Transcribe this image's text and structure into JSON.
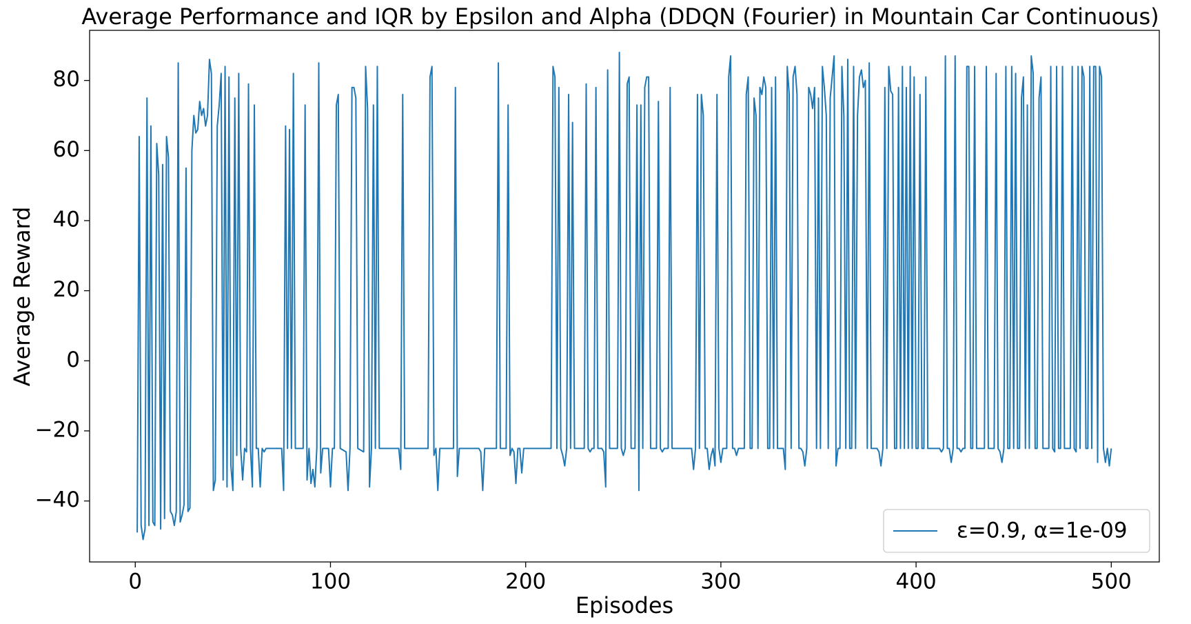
{
  "chart_data": {
    "type": "line",
    "title": "Average Performance and IQR by Epsilon and Alpha (DDQN (Fourier) in Mountain Car Continuous)",
    "x_label": "Episodes",
    "y_label": "Average Reward",
    "xlim": [
      -23.4,
      524.6
    ],
    "ylim": [
      -57.4,
      94.3
    ],
    "xticks": [
      0,
      100,
      200,
      300,
      400,
      500
    ],
    "yticks": [
      {
        "value": -40,
        "label": "−40"
      },
      {
        "value": -20,
        "label": "−20"
      },
      0,
      20,
      40,
      60,
      80
    ],
    "legend": "lower right",
    "grid": false,
    "x": [
      1,
      2,
      3,
      4,
      5,
      6,
      7,
      8,
      9,
      10,
      11,
      12,
      13,
      14,
      15,
      16,
      17,
      18,
      19,
      20,
      21,
      22,
      23,
      24,
      25,
      26,
      27,
      28,
      29,
      30,
      31,
      32,
      33,
      34,
      35,
      36,
      37,
      38,
      39,
      40,
      41,
      42,
      43,
      44,
      45,
      46,
      47,
      48,
      49,
      50,
      51,
      52,
      53,
      54,
      55,
      56,
      57,
      58,
      59,
      60,
      61,
      62,
      63,
      64,
      65,
      66,
      67,
      75,
      76,
      77,
      78,
      79,
      80,
      81,
      82,
      86,
      87,
      88,
      89,
      90,
      91,
      92,
      93,
      94,
      95,
      96,
      99,
      100,
      101,
      102,
      103,
      104,
      105,
      108,
      109,
      110,
      111,
      112,
      113,
      114,
      117,
      118,
      119,
      120,
      121,
      122,
      123,
      124,
      125,
      135,
      136,
      137,
      138,
      150,
      151,
      152,
      153,
      154,
      155,
      156,
      163,
      164,
      165,
      166,
      176,
      177,
      178,
      179,
      185,
      186,
      187,
      190,
      191,
      192,
      193,
      194,
      195,
      196,
      197,
      198,
      199,
      213,
      214,
      215,
      216,
      217,
      218,
      219,
      220,
      221,
      222,
      223,
      224,
      225,
      226,
      227,
      228,
      229,
      230,
      231,
      232,
      233,
      234,
      235,
      236,
      237,
      238,
      239,
      240,
      241,
      242,
      243,
      244,
      245,
      246,
      247,
      248,
      249,
      250,
      251,
      252,
      253,
      254,
      255,
      256,
      257,
      258,
      259,
      260,
      261,
      262,
      263,
      264,
      265,
      266,
      267,
      268,
      269,
      270,
      271,
      272,
      273,
      274,
      275,
      285,
      286,
      287,
      288,
      289,
      290,
      291,
      292,
      293,
      294,
      295,
      296,
      297,
      298,
      299,
      300,
      301,
      302,
      303,
      304,
      305,
      306,
      307,
      308,
      309,
      310,
      311,
      312,
      313,
      314,
      315,
      316,
      317,
      318,
      319,
      320,
      321,
      322,
      323,
      324,
      325,
      326,
      327,
      328,
      329,
      330,
      331,
      332,
      333,
      334,
      335,
      336,
      337,
      338,
      339,
      340,
      341,
      342,
      343,
      344,
      345,
      346,
      347,
      348,
      349,
      350,
      351,
      352,
      353,
      354,
      355,
      356,
      357,
      358,
      359,
      360,
      361,
      362,
      363,
      364,
      365,
      366,
      367,
      368,
      369,
      370,
      371,
      372,
      373,
      374,
      375,
      376,
      377,
      378,
      379,
      380,
      381,
      382,
      383,
      384,
      385,
      386,
      387,
      388,
      389,
      390,
      391,
      392,
      393,
      394,
      395,
      396,
      397,
      398,
      399,
      400,
      401,
      402,
      403,
      404,
      405,
      406,
      407,
      408,
      409,
      410,
      411,
      412,
      413,
      414,
      415,
      416,
      417,
      418,
      419,
      420,
      421,
      422,
      423,
      424,
      425,
      426,
      427,
      428,
      429,
      430,
      431,
      432,
      433,
      434,
      435,
      436,
      437,
      438,
      439,
      440,
      441,
      442,
      443,
      444,
      445,
      446,
      447,
      448,
      449,
      450,
      451,
      452,
      453,
      454,
      455,
      456,
      457,
      458,
      459,
      460,
      461,
      462,
      463,
      464,
      465,
      466,
      467,
      468,
      469,
      470,
      471,
      472,
      473,
      474,
      475,
      476,
      477,
      478,
      479,
      480,
      481,
      482,
      483,
      484,
      485,
      486,
      487,
      488,
      489,
      490,
      491,
      492,
      493,
      494,
      495,
      496,
      497,
      498,
      499,
      500
    ],
    "series": [
      {
        "name": "ε=0.9, α=1e-09",
        "color": "#1f77b4",
        "values": [
          -49,
          64,
          -47,
          -51,
          -48,
          75,
          -47,
          67,
          -46,
          -47,
          62,
          53,
          -48,
          56,
          -45,
          64,
          58,
          -43,
          -44,
          -47,
          -43,
          85,
          -46,
          -44,
          -41,
          55,
          -43,
          -42,
          60,
          70,
          65,
          66,
          74,
          70,
          72,
          67,
          70,
          86,
          82,
          -37,
          -34,
          67,
          73,
          82,
          -34,
          84,
          -36,
          81,
          -30,
          -37,
          75,
          -27,
          82,
          -25,
          -34,
          -25,
          -26,
          79,
          -25,
          -36,
          73,
          -25,
          -25,
          -36,
          -25,
          -26,
          -25,
          -25,
          -37,
          67,
          -25,
          66,
          -25,
          82,
          -25,
          -25,
          73,
          -34,
          -25,
          -35,
          -31,
          -36,
          -25,
          85,
          -32,
          -25,
          -25,
          -36,
          -25,
          -25,
          73,
          76,
          -25,
          -26,
          -37,
          -25,
          78,
          78,
          75,
          -25,
          -26,
          84,
          72,
          -36,
          -25,
          73,
          -25,
          84,
          -25,
          -25,
          -31,
          76,
          -25,
          -25,
          81,
          84,
          -27,
          -25,
          -37,
          -25,
          -25,
          78,
          -33,
          -25,
          -25,
          -26,
          -37,
          -25,
          -25,
          85,
          -25,
          -25,
          73,
          -27,
          -25,
          -26,
          -35,
          -25,
          -25,
          -32,
          -25,
          -25,
          84,
          81,
          -25,
          78,
          -25,
          -27,
          -30,
          -25,
          76,
          -25,
          68,
          -25,
          -25,
          -25,
          -25,
          -25,
          -25,
          79,
          -25,
          -26,
          -25,
          -25,
          78,
          -25,
          -25,
          -25,
          -26,
          -36,
          83,
          -25,
          -25,
          -25,
          -25,
          -25,
          88,
          -25,
          -27,
          -25,
          79,
          81,
          -25,
          -25,
          -25,
          73,
          -37,
          73,
          -25,
          78,
          81,
          81,
          -25,
          -25,
          -25,
          -25,
          74,
          -25,
          -26,
          -25,
          -25,
          -25,
          78,
          -25,
          -25,
          -31,
          -25,
          76,
          -25,
          76,
          70,
          -25,
          -25,
          -31,
          -27,
          -25,
          -30,
          76,
          -25,
          -29,
          -25,
          -25,
          -25,
          81,
          87,
          -25,
          -25,
          -27,
          -25,
          -25,
          -25,
          -25,
          76,
          81,
          -25,
          -25,
          75,
          70,
          -25,
          78,
          76,
          81,
          78,
          -25,
          -25,
          78,
          -25,
          81,
          -25,
          -25,
          -25,
          -25,
          -31,
          84,
          76,
          -25,
          81,
          84,
          76,
          -25,
          -25,
          -26,
          -30,
          -25,
          78,
          76,
          72,
          78,
          -25,
          75,
          -25,
          84,
          78,
          70,
          -25,
          75,
          81,
          87,
          -30,
          -25,
          -25,
          84,
          70,
          -25,
          86,
          -25,
          -25,
          84,
          -25,
          70,
          81,
          83,
          78,
          80,
          -25,
          85,
          -25,
          -25,
          -25,
          -25,
          -26,
          -30,
          -25,
          78,
          -25,
          84,
          77,
          76,
          -25,
          -25,
          78,
          -25,
          84,
          -25,
          78,
          -25,
          84,
          -25,
          81,
          -25,
          -25,
          76,
          -25,
          -25,
          81,
          -25,
          -25,
          -25,
          -25,
          -25,
          -25,
          -25,
          -26,
          -25,
          87,
          -25,
          -25,
          -29,
          -25,
          87,
          -25,
          -25,
          -26,
          -25,
          -25,
          84,
          84,
          -25,
          -25,
          84,
          -25,
          -25,
          -25,
          -25,
          -25,
          84,
          -25,
          -25,
          -25,
          -25,
          82,
          -25,
          -26,
          -29,
          -25,
          84,
          -25,
          -25,
          84,
          -25,
          82,
          -25,
          -25,
          75,
          81,
          -25,
          73,
          -25,
          87,
          82,
          -25,
          -25,
          75,
          81,
          -25,
          -25,
          -25,
          -25,
          84,
          -25,
          -26,
          84,
          -25,
          -25,
          84,
          -25,
          -25,
          -25,
          -25,
          84,
          -25,
          -26,
          84,
          -25,
          84,
          81,
          -25,
          -25,
          84,
          -25,
          84,
          84,
          -29,
          84,
          81,
          -25,
          -29,
          -25,
          -30,
          -25
        ]
      }
    ]
  }
}
